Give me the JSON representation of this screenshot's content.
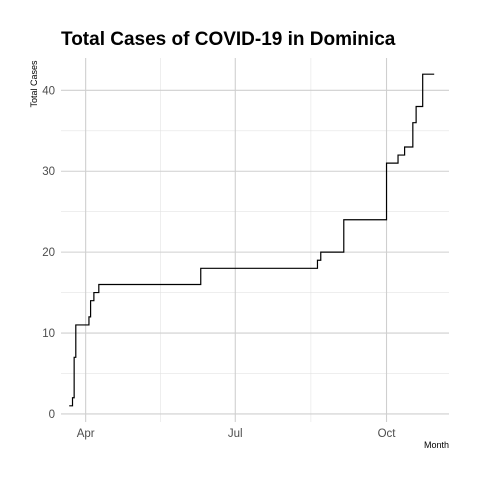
{
  "chart_data": {
    "type": "line",
    "title": "Total Cases of COVID-19 in Dominica",
    "xlabel": "Month",
    "ylabel": "Total Cases",
    "xlim": [
      "2020-03-17",
      "2020-11-08"
    ],
    "ylim": [
      -1,
      44
    ],
    "x_ticks": [
      {
        "date": "2020-04-01",
        "label": "Apr"
      },
      {
        "date": "2020-07-01",
        "label": "Jul"
      },
      {
        "date": "2020-10-01",
        "label": "Oct"
      }
    ],
    "y_ticks": [
      0,
      10,
      20,
      30,
      40
    ],
    "grid": true,
    "legend": "none",
    "step": true,
    "series": [
      {
        "color": "#000000",
        "points": [
          {
            "x": "2020-03-22",
            "y": 1
          },
          {
            "x": "2020-03-24",
            "y": 2
          },
          {
            "x": "2020-03-25",
            "y": 7
          },
          {
            "x": "2020-03-26",
            "y": 11
          },
          {
            "x": "2020-04-03",
            "y": 12
          },
          {
            "x": "2020-04-04",
            "y": 14
          },
          {
            "x": "2020-04-06",
            "y": 15
          },
          {
            "x": "2020-04-09",
            "y": 16
          },
          {
            "x": "2020-06-10",
            "y": 18
          },
          {
            "x": "2020-08-20",
            "y": 19
          },
          {
            "x": "2020-08-22",
            "y": 20
          },
          {
            "x": "2020-09-05",
            "y": 24
          },
          {
            "x": "2020-10-01",
            "y": 31
          },
          {
            "x": "2020-10-08",
            "y": 32
          },
          {
            "x": "2020-10-12",
            "y": 33
          },
          {
            "x": "2020-10-17",
            "y": 36
          },
          {
            "x": "2020-10-19",
            "y": 38
          },
          {
            "x": "2020-10-23",
            "y": 42
          },
          {
            "x": "2020-10-30",
            "y": 42
          }
        ]
      }
    ]
  }
}
